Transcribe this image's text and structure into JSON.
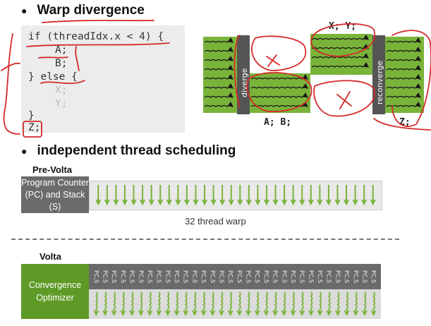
{
  "bullets": {
    "warp_divergence": "Warp divergence",
    "independent_scheduling": "independent thread scheduling"
  },
  "code": {
    "lines": [
      "if (threadIdx.x < 4) {",
      "A;",
      "B;",
      "} else {",
      "X;",
      "Y;",
      "}",
      "Z;"
    ]
  },
  "diagram": {
    "diverge_label": "diverge",
    "reconverge_label": "reconverge",
    "top_label": "X; Y;",
    "bottom_label": "A; B;",
    "right_label": "Z;"
  },
  "prevolta": {
    "heading": "Pre-Volta",
    "box_label": "Program Counter (PC) and Stack (S)",
    "caption": "32 thread warp",
    "thread_count": 32
  },
  "volta": {
    "heading": "Volta",
    "box_label": "Convergence Optimizer",
    "pc_label": "PC,S",
    "thread_count": 32
  },
  "colors": {
    "green": "#7ab33a",
    "dark_green": "#5e9a26",
    "gray": "#6b6b6b",
    "annotation_red": "#d42a2a"
  }
}
